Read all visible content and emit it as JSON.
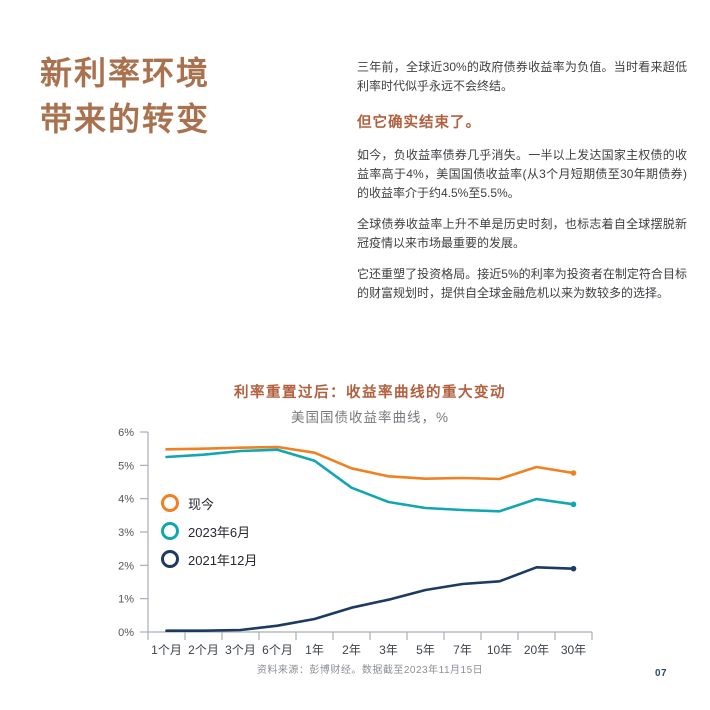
{
  "header": {
    "title_line1": "新利率环境",
    "title_line2": "带来的转变"
  },
  "article": {
    "paragraph1": "三年前，全球近30%的政府债券收益率为负值。当时看来超低利率时代似乎永远不会终结。",
    "heading": "但它确实结束了。",
    "paragraph2": "如今，负收益率债券几乎消失。一半以上发达国家主权债的收益率高于4%，美国国债收益率(从3个月短期债至30年期债券)的收益率介于约4.5%至5.5%。",
    "paragraph3": "全球债券收益率上升不单是历史时刻，也标志着自全球摆脱新冠疫情以来市场最重要的发展。",
    "paragraph4": "它还重塑了投资格局。接近5%的利率为投资者在制定符合目标的财富规划时，提供自全球金融危机以来为数较多的选择。"
  },
  "colors": {
    "title_accent": "#A9714E",
    "heading_accent": "#B26140",
    "chart_title_accent": "#B06140",
    "axis": "#A8AEB5",
    "ytick_label": "#50555C",
    "xtick_label": "#3E434B",
    "legend_text": "#25282E",
    "source_text": "#8B9095",
    "page_number": "#2C4A74"
  },
  "chart_data": {
    "type": "line",
    "title": "利率重置过后：收益率曲线的重大变动",
    "subtitle": "美国国债收益率曲线，%",
    "xlabel": "",
    "ylabel": "",
    "categories": [
      "1个月",
      "2个月",
      "3个月",
      "6个月",
      "1年",
      "2年",
      "3年",
      "5年",
      "7年",
      "10年",
      "20年",
      "30年"
    ],
    "series": [
      {
        "id": "today",
        "name": "现今",
        "color": "#F08122",
        "values": [
          5.48,
          5.5,
          5.53,
          5.55,
          5.38,
          4.91,
          4.67,
          4.6,
          4.62,
          4.59,
          4.95,
          4.77
        ]
      },
      {
        "id": "jun-2023",
        "name": "2023年6月",
        "color": "#12A6B2",
        "values": [
          5.25,
          5.32,
          5.43,
          5.47,
          5.14,
          4.33,
          3.9,
          3.72,
          3.66,
          3.62,
          3.99,
          3.83
        ]
      },
      {
        "id": "dec-2021",
        "name": "2021年12月",
        "color": "#1C3A62",
        "values": [
          0.04,
          0.04,
          0.06,
          0.19,
          0.39,
          0.73,
          0.97,
          1.26,
          1.44,
          1.52,
          1.94,
          1.9
        ]
      }
    ],
    "ylim": [
      0,
      6
    ],
    "yticks": [
      "0%",
      "1%",
      "2%",
      "3%",
      "4%",
      "5%",
      "6%"
    ],
    "grid": false,
    "legend_position": "inside-upper-left",
    "source": "资料来源：彭博财经。数据截至2023年11月15日"
  },
  "footer": {
    "page_number": "07"
  }
}
